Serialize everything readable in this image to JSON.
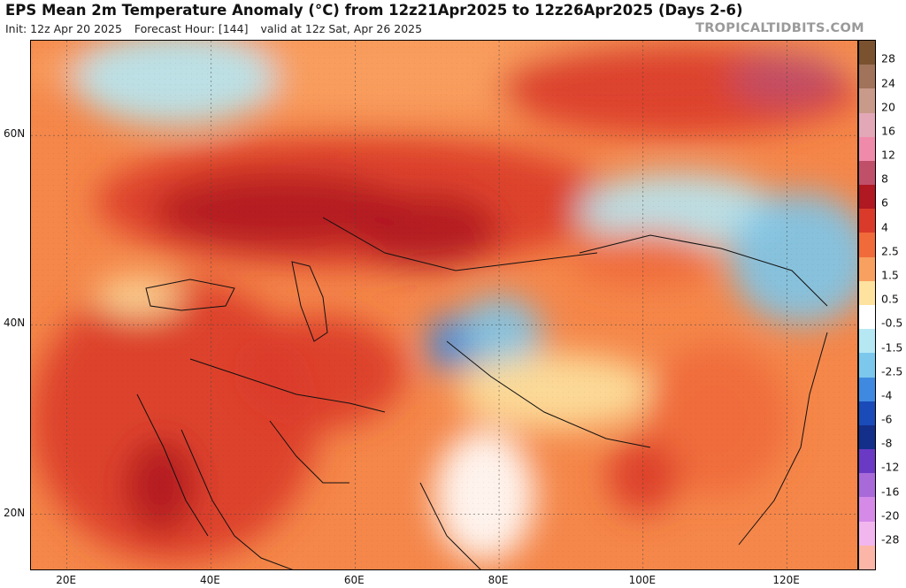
{
  "header": {
    "title": "EPS Mean 2m Temperature Anomaly (°C) from 12z21Apr2025 to 12z26Apr2025 (Days 2-6)",
    "init": "Init: 12z Apr 20 2025",
    "forecast_hour": "Forecast Hour: [144]",
    "valid": "valid at 12z Sat, Apr 26 2025",
    "credit": "TROPICALTIDBITS.COM"
  },
  "map": {
    "lon_range": [
      15,
      130
    ],
    "lat_range": [
      14,
      70
    ],
    "lat_ticks": [
      {
        "value": 60,
        "label": "60N"
      },
      {
        "value": 40,
        "label": "40N"
      },
      {
        "value": 20,
        "label": "20N"
      }
    ],
    "lon_ticks": [
      {
        "value": 20,
        "label": "20E"
      },
      {
        "value": 40,
        "label": "40E"
      },
      {
        "value": 60,
        "label": "60E"
      },
      {
        "value": 80,
        "label": "80E"
      },
      {
        "value": 100,
        "label": "100E"
      },
      {
        "value": 120,
        "label": "120E"
      }
    ],
    "anomaly_regions": [
      {
        "lon": 72,
        "lat": 67,
        "rx": 60,
        "ry": 5,
        "value": 1.5
      },
      {
        "lon": 35,
        "lat": 66,
        "rx": 14,
        "ry": 5,
        "value": -1.5
      },
      {
        "lon": 60,
        "lat": 53,
        "rx": 36,
        "ry": 7,
        "value": 4
      },
      {
        "lon": 50,
        "lat": 52,
        "rx": 18,
        "ry": 4,
        "value": 6
      },
      {
        "lon": 70,
        "lat": 50,
        "rx": 10,
        "ry": 4,
        "value": 6
      },
      {
        "lon": 35,
        "lat": 30,
        "rx": 20,
        "ry": 15,
        "value": 4
      },
      {
        "lon": 33,
        "lat": 23,
        "rx": 5,
        "ry": 5,
        "value": 6
      },
      {
        "lon": 55,
        "lat": 35,
        "rx": 12,
        "ry": 6,
        "value": 4
      },
      {
        "lon": 30,
        "lat": 43,
        "rx": 6,
        "ry": 2,
        "value": 0.5
      },
      {
        "lon": 105,
        "lat": 65,
        "rx": 25,
        "ry": 5,
        "value": 4
      },
      {
        "lon": 120,
        "lat": 66,
        "rx": 8,
        "ry": 3,
        "value": 8
      },
      {
        "lon": 105,
        "lat": 52,
        "rx": 14,
        "ry": 4,
        "value": -1.5
      },
      {
        "lon": 122,
        "lat": 47,
        "rx": 10,
        "ry": 7,
        "value": -2.5
      },
      {
        "lon": 100,
        "lat": 47,
        "rx": 10,
        "ry": 3,
        "value": 2.5
      },
      {
        "lon": 80,
        "lat": 39,
        "rx": 6,
        "ry": 4,
        "value": -2.5
      },
      {
        "lon": 73,
        "lat": 38,
        "rx": 3,
        "ry": 3,
        "value": -4
      },
      {
        "lon": 88,
        "lat": 33,
        "rx": 14,
        "ry": 4,
        "value": 0.5
      },
      {
        "lon": 78,
        "lat": 22,
        "rx": 7,
        "ry": 7,
        "value": -0.5
      },
      {
        "lon": 110,
        "lat": 30,
        "rx": 10,
        "ry": 8,
        "value": 2.5
      },
      {
        "lon": 100,
        "lat": 24,
        "rx": 5,
        "ry": 4,
        "value": 4
      }
    ]
  },
  "colorbar": {
    "levels": [
      {
        "label": "28",
        "color": "#7a5230"
      },
      {
        "label": "24",
        "color": "#a0735a"
      },
      {
        "label": "20",
        "color": "#c89a8a"
      },
      {
        "label": "16",
        "color": "#e3a8b8"
      },
      {
        "label": "12",
        "color": "#f08aaa"
      },
      {
        "label": "8",
        "color": "#c0506a"
      },
      {
        "label": "6",
        "color": "#b01822"
      },
      {
        "label": "4",
        "color": "#da3a2a"
      },
      {
        "label": "2.5",
        "color": "#f06a3a"
      },
      {
        "label": "1.5",
        "color": "#f8a060"
      },
      {
        "label": "0.5",
        "color": "#fde2a0"
      },
      {
        "label": "-0.5",
        "color": "#ffffff"
      },
      {
        "label": "-1.5",
        "color": "#b6e8f4"
      },
      {
        "label": "-2.5",
        "color": "#7cc8ec"
      },
      {
        "label": "-4",
        "color": "#3f8ae0"
      },
      {
        "label": "-6",
        "color": "#1a4bb8"
      },
      {
        "label": "-8",
        "color": "#142f8a"
      },
      {
        "label": "-12",
        "color": "#6a3ac4"
      },
      {
        "label": "-16",
        "color": "#a76ad8"
      },
      {
        "label": "-20",
        "color": "#d58ae8"
      },
      {
        "label": "-28",
        "color": "#f2b6ee"
      }
    ],
    "extra_colors": [
      "#fbb6a8"
    ]
  }
}
